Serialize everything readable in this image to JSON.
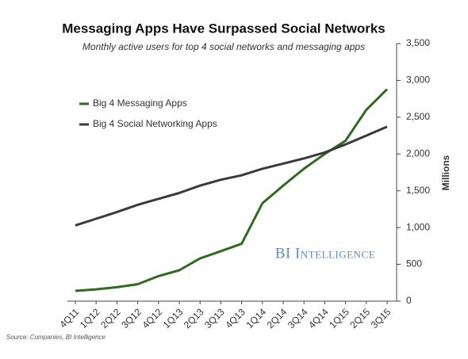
{
  "chart_data": {
    "type": "line",
    "title": "Messaging Apps Have Surpassed Social Networks",
    "subtitle": "Monthly active users for top 4 social networks and messaging apps",
    "y_label": "Millions",
    "watermark": "BI Intelligence",
    "source": "Source: Companies, BI Intelligence",
    "categories": [
      "4Q11",
      "1Q12",
      "2Q12",
      "3Q12",
      "4Q12",
      "1Q13",
      "2Q13",
      "3Q13",
      "4Q13",
      "1Q14",
      "2Q14",
      "3Q14",
      "4Q14",
      "1Q15",
      "2Q15",
      "3Q15"
    ],
    "series": [
      {
        "name": "Big 4 Messaging Apps",
        "color": "#2e6b1f",
        "values": [
          140,
          160,
          190,
          230,
          340,
          420,
          580,
          680,
          780,
          1330,
          1570,
          1800,
          2000,
          2180,
          2600,
          2880
        ]
      },
      {
        "name": "Big 4 Social Networking Apps",
        "color": "#3a3a3a",
        "values": [
          1030,
          1120,
          1210,
          1310,
          1390,
          1470,
          1570,
          1650,
          1710,
          1800,
          1870,
          1940,
          2020,
          2130,
          2250,
          2370
        ]
      }
    ],
    "ylim": [
      0,
      3500
    ],
    "yticks": [
      0,
      500,
      {
        "value": 1000,
        "label": "1,000"
      },
      {
        "value": 1500,
        "label": "1,500"
      },
      {
        "value": 2000,
        "label": "2,000"
      },
      {
        "value": 2500,
        "label": "2,500"
      },
      {
        "value": 3000,
        "label": "3,000"
      },
      {
        "value": 3500,
        "label": "3,500"
      }
    ],
    "grid": false,
    "y_axis_side": "right"
  }
}
